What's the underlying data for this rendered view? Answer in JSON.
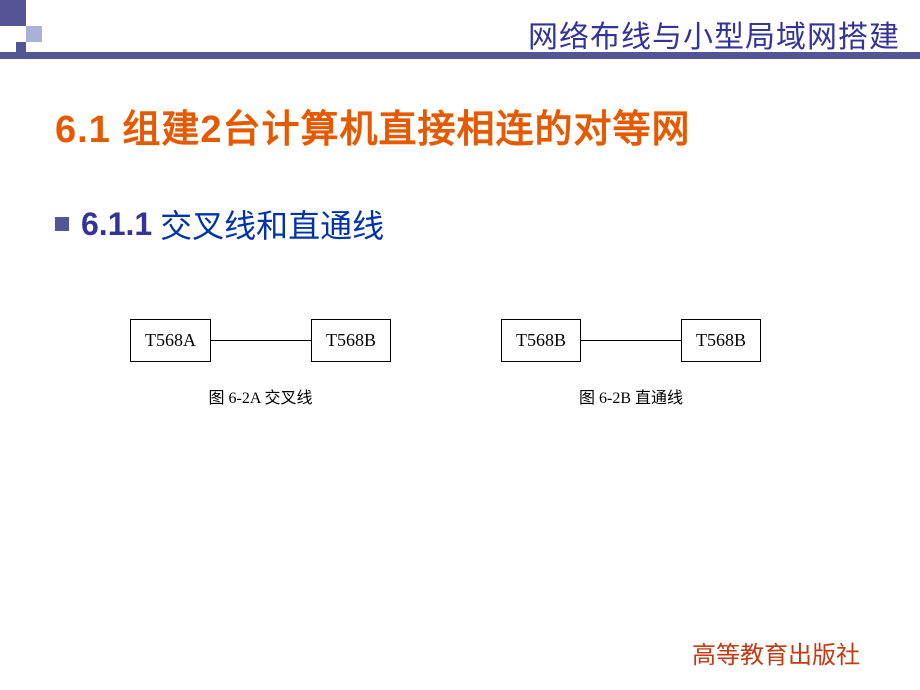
{
  "colors": {
    "accent_purple": "#545595",
    "accent_purple_light": "#aab0d6",
    "header_text": "#333399",
    "section_title": "#e55a00",
    "subsection_num": "#333399",
    "subsection_text": "#0033aa",
    "publisher_text": "#c23a11",
    "border_black": "#000000"
  },
  "header": {
    "title": "网络布线与小型局域网搭建"
  },
  "section": {
    "title": "6.1 组建2台计算机直接相连的对等网"
  },
  "subsection": {
    "number": "6.1.1",
    "text": "交叉线和直通线"
  },
  "diagrams": {
    "left": {
      "box1": "T568A",
      "box2": "T568B",
      "caption": "图 6-2A 交叉线"
    },
    "right": {
      "box1": "T568B",
      "box2": "T568B",
      "caption": "图 6-2B 直通线"
    }
  },
  "publisher": "高等教育出版社"
}
